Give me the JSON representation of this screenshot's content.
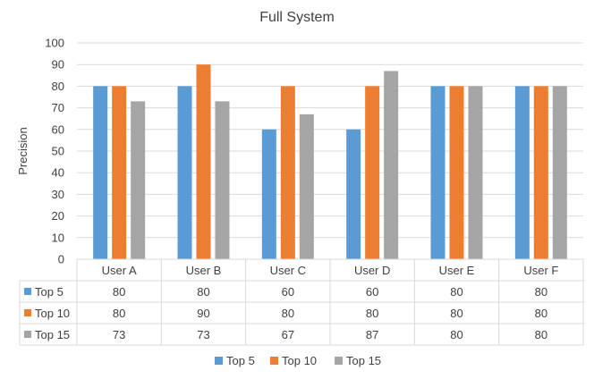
{
  "chart_data": {
    "type": "bar",
    "title": "Full System",
    "xlabel": "",
    "ylabel": "Precision",
    "ylim": [
      0,
      100
    ],
    "yticks": [
      0,
      10,
      20,
      30,
      40,
      50,
      60,
      70,
      80,
      90,
      100
    ],
    "grid": true,
    "legend_position": "bottom",
    "data_table": true,
    "categories": [
      "User A",
      "User B",
      "User C",
      "User D",
      "User E",
      "User F"
    ],
    "series": [
      {
        "name": "Top 5",
        "color": "#5B9BD5",
        "values": [
          80,
          80,
          60,
          60,
          80,
          80
        ]
      },
      {
        "name": "Top 10",
        "color": "#ED7D31",
        "values": [
          80,
          90,
          80,
          80,
          80,
          80
        ]
      },
      {
        "name": "Top 15",
        "color": "#A5A5A5",
        "values": [
          73,
          73,
          67,
          87,
          80,
          80
        ]
      }
    ]
  }
}
